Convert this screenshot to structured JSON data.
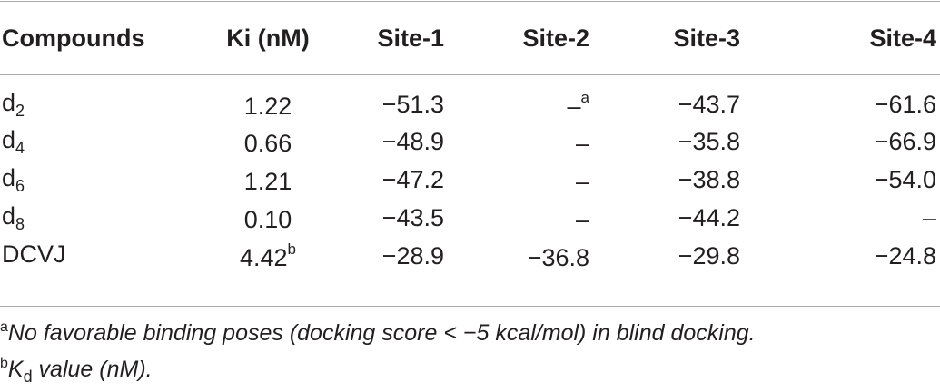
{
  "table": {
    "headers": [
      "Compounds",
      "Ki (nM)",
      "Site-1",
      "Site-2",
      "Site-3",
      "Site-4"
    ],
    "rows": [
      {
        "compound_base": "d",
        "compound_sub": "2",
        "ki": "1.22",
        "ki_sup": "",
        "site1": "−51.3",
        "site2": "–",
        "site2_sup": "a",
        "site3": "−43.7",
        "site4": "−61.6"
      },
      {
        "compound_base": "d",
        "compound_sub": "4",
        "ki": "0.66",
        "ki_sup": "",
        "site1": "−48.9",
        "site2": "–",
        "site2_sup": "",
        "site3": "−35.8",
        "site4": "−66.9"
      },
      {
        "compound_base": "d",
        "compound_sub": "6",
        "ki": "1.21",
        "ki_sup": "",
        "site1": "−47.2",
        "site2": "–",
        "site2_sup": "",
        "site3": "−38.8",
        "site4": "−54.0"
      },
      {
        "compound_base": "d",
        "compound_sub": "8",
        "ki": "0.10",
        "ki_sup": "",
        "site1": "−43.5",
        "site2": "–",
        "site2_sup": "",
        "site3": "−44.2",
        "site4": "–"
      },
      {
        "compound_base": "DCVJ",
        "compound_sub": "",
        "ki": "4.42",
        "ki_sup": "b",
        "site1": "−28.9",
        "site2": "−36.8",
        "site2_sup": "",
        "site3": "−29.8",
        "site4": "−24.8"
      }
    ]
  },
  "footnotes": [
    {
      "mark": "a",
      "text": "No favorable binding poses (docking score < −5 kcal/mol) in blind docking."
    },
    {
      "mark": "b",
      "text_before": "K",
      "text_sub": "d",
      "text_after": " value (nM)."
    }
  ]
}
